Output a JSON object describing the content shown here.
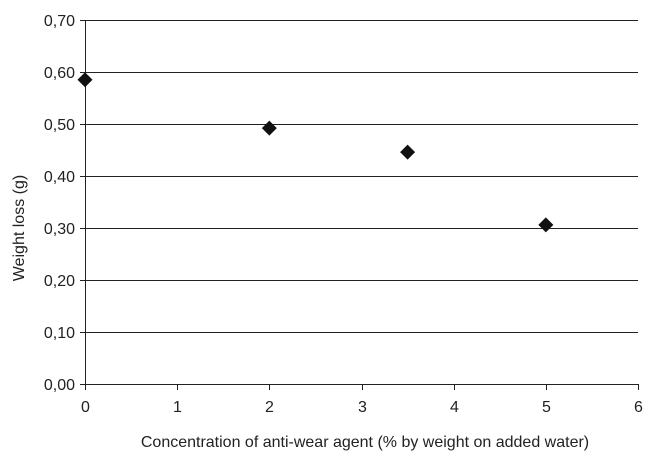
{
  "chart_data": {
    "type": "scatter",
    "xlabel": "Concentration of anti-wear agent (% by weight on added water)",
    "ylabel": "Weight loss (g)",
    "xlim": [
      0,
      6
    ],
    "ylim": [
      0,
      0.7
    ],
    "x_ticks": [
      0,
      1,
      2,
      3,
      4,
      5,
      6
    ],
    "x_tick_labels": [
      "0",
      "1",
      "2",
      "3",
      "4",
      "5",
      "6"
    ],
    "y_ticks": [
      0,
      0.1,
      0.2,
      0.3,
      0.4,
      0.5,
      0.6,
      0.7
    ],
    "y_tick_labels": [
      "0,00",
      "0,10",
      "0,20",
      "0,30",
      "0,40",
      "0,50",
      "0,60",
      "0,70"
    ],
    "grid": "horizontal",
    "legend": "none",
    "marker": "diamond",
    "marker_color": "#111111",
    "series": [
      {
        "points": [
          {
            "x": 0,
            "y": 0.585
          },
          {
            "x": 2,
            "y": 0.492
          },
          {
            "x": 3.5,
            "y": 0.446
          },
          {
            "x": 5,
            "y": 0.306
          }
        ]
      }
    ]
  }
}
